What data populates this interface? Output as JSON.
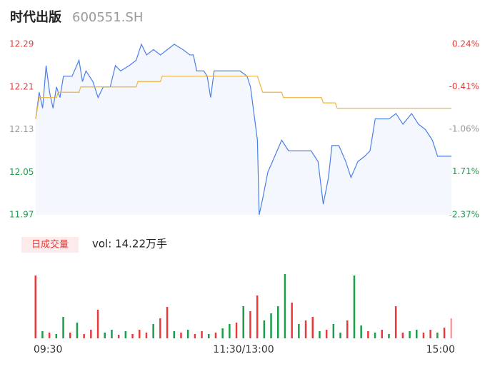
{
  "title": "时代出版",
  "code": "600551.SH",
  "chart_data": [
    {
      "type": "line",
      "xlim": [
        0,
        240
      ],
      "ylim": [
        11.97,
        12.29
      ],
      "yticks": [
        12.29,
        12.21,
        12.13,
        12.05,
        11.97
      ],
      "ytick_colors": [
        "#e83a3a",
        "#e83a3a",
        "#999999",
        "#1a9e4a",
        "#1a9e4a"
      ],
      "y2lim": [
        -2.37,
        0.24
      ],
      "y2ticks": [
        {
          "value": 0.24,
          "label": "0.24%"
        },
        {
          "value": -0.41,
          "label": "-0.41%"
        },
        {
          "value": -1.06,
          "label": "-1.06%"
        },
        {
          "value": -1.71,
          "label": "-1.71%"
        },
        {
          "value": -2.37,
          "label": "-2.37%"
        }
      ],
      "series": [
        {
          "color": "#4a7fe8",
          "area_color": "#f4f7fd",
          "x": [
            0,
            2,
            4,
            6,
            8,
            10,
            12,
            14,
            16,
            19,
            21,
            25,
            27,
            29,
            33,
            36,
            39,
            43,
            46,
            49,
            54,
            58,
            61,
            64,
            68,
            72,
            76,
            80,
            85,
            89,
            91,
            93,
            97,
            99,
            101,
            103,
            107,
            111,
            118,
            122,
            124,
            126,
            128,
            129,
            131,
            134,
            138,
            142,
            146,
            151,
            155,
            159,
            163,
            166,
            169,
            171,
            175,
            179,
            182,
            186,
            190,
            193,
            196,
            200,
            204,
            208,
            212,
            217,
            221,
            225,
            229,
            232,
            235,
            240
          ],
          "values": [
            12.15,
            12.2,
            12.17,
            12.25,
            12.2,
            12.17,
            12.21,
            12.19,
            12.23,
            12.23,
            12.23,
            12.26,
            12.22,
            12.24,
            12.22,
            12.19,
            12.21,
            12.21,
            12.25,
            12.24,
            12.25,
            12.26,
            12.29,
            12.27,
            12.28,
            12.27,
            12.28,
            12.29,
            12.28,
            12.27,
            12.27,
            12.24,
            12.24,
            12.23,
            12.19,
            12.24,
            12.24,
            12.24,
            12.24,
            12.23,
            12.21,
            12.16,
            12.11,
            11.97,
            12.0,
            12.05,
            12.08,
            12.11,
            12.09,
            12.09,
            12.09,
            12.09,
            12.07,
            11.99,
            12.04,
            12.1,
            12.1,
            12.07,
            12.04,
            12.07,
            12.08,
            12.09,
            12.15,
            12.15,
            12.15,
            12.16,
            12.14,
            12.16,
            12.14,
            12.13,
            12.11,
            12.08,
            12.08,
            12.08
          ]
        },
        {
          "color": "#f0b43a",
          "x": [
            0,
            2,
            12,
            13,
            25,
            26,
            58,
            59,
            72,
            73,
            128,
            131,
            142,
            143,
            165,
            166,
            173,
            174,
            240
          ],
          "values": [
            12.15,
            12.19,
            12.19,
            12.2,
            12.2,
            12.21,
            12.21,
            12.22,
            12.22,
            12.23,
            12.23,
            12.2,
            12.2,
            12.19,
            12.19,
            12.18,
            12.18,
            12.17,
            12.17
          ]
        }
      ]
    },
    {
      "type": "bar",
      "label": "日成交量",
      "volume_text": "vol: 14.22万手",
      "xlim": [
        0,
        240
      ],
      "ylim": [
        0,
        90
      ],
      "xticks": [
        {
          "value": 0,
          "label": "09:30"
        },
        {
          "value": 120,
          "label": "11:30/13:00"
        },
        {
          "value": 240,
          "label": "15:00"
        }
      ],
      "x": [
        0,
        4,
        8,
        12,
        16,
        20,
        24,
        28,
        32,
        36,
        40,
        44,
        48,
        52,
        56,
        60,
        64,
        68,
        72,
        76,
        80,
        84,
        88,
        92,
        96,
        100,
        104,
        108,
        112,
        116,
        120,
        124,
        128,
        132,
        136,
        140,
        144,
        148,
        152,
        156,
        160,
        164,
        168,
        172,
        176,
        180,
        184,
        188,
        192,
        196,
        200,
        204,
        208,
        212,
        216,
        220,
        224,
        228,
        232,
        236,
        240
      ],
      "values": [
        88,
        10,
        8,
        6,
        30,
        8,
        22,
        6,
        12,
        40,
        8,
        12,
        5,
        10,
        6,
        12,
        8,
        20,
        28,
        44,
        10,
        8,
        12,
        6,
        10,
        6,
        8,
        14,
        20,
        22,
        45,
        38,
        60,
        25,
        35,
        45,
        90,
        50,
        20,
        25,
        30,
        10,
        12,
        20,
        8,
        25,
        88,
        18,
        10,
        8,
        12,
        6,
        45,
        8,
        10,
        12,
        8,
        12,
        8,
        15,
        28
      ],
      "colors": [
        "#e83a3a",
        "#1a9e4a",
        "#e83a3a",
        "#1a9e4a",
        "#1a9e4a",
        "#e83a3a",
        "#1a9e4a",
        "#e83a3a",
        "#e83a3a",
        "#e83a3a",
        "#1a9e4a",
        "#1a9e4a",
        "#e83a3a",
        "#1a9e4a",
        "#e83a3a",
        "#e83a3a",
        "#e83a3a",
        "#1a9e4a",
        "#e83a3a",
        "#e83a3a",
        "#1a9e4a",
        "#e83a3a",
        "#1a9e4a",
        "#e83a3a",
        "#e83a3a",
        "#1a9e4a",
        "#e83a3a",
        "#1a9e4a",
        "#1a9e4a",
        "#e83a3a",
        "#1a9e4a",
        "#e83a3a",
        "#e83a3a",
        "#1a9e4a",
        "#1a9e4a",
        "#1a9e4a",
        "#1a9e4a",
        "#e83a3a",
        "#1a9e4a",
        "#e83a3a",
        "#e83a3a",
        "#1a9e4a",
        "#e83a3a",
        "#1a9e4a",
        "#1a9e4a",
        "#e83a3a",
        "#1a9e4a",
        "#1a9e4a",
        "#e83a3a",
        "#1a9e4a",
        "#e83a3a",
        "#1a9e4a",
        "#e83a3a",
        "#e83a3a",
        "#1a9e4a",
        "#1a9e4a",
        "#e83a3a",
        "#e83a3a",
        "#1a9e4a",
        "#e83a3a",
        "#f4a0a0"
      ]
    }
  ]
}
